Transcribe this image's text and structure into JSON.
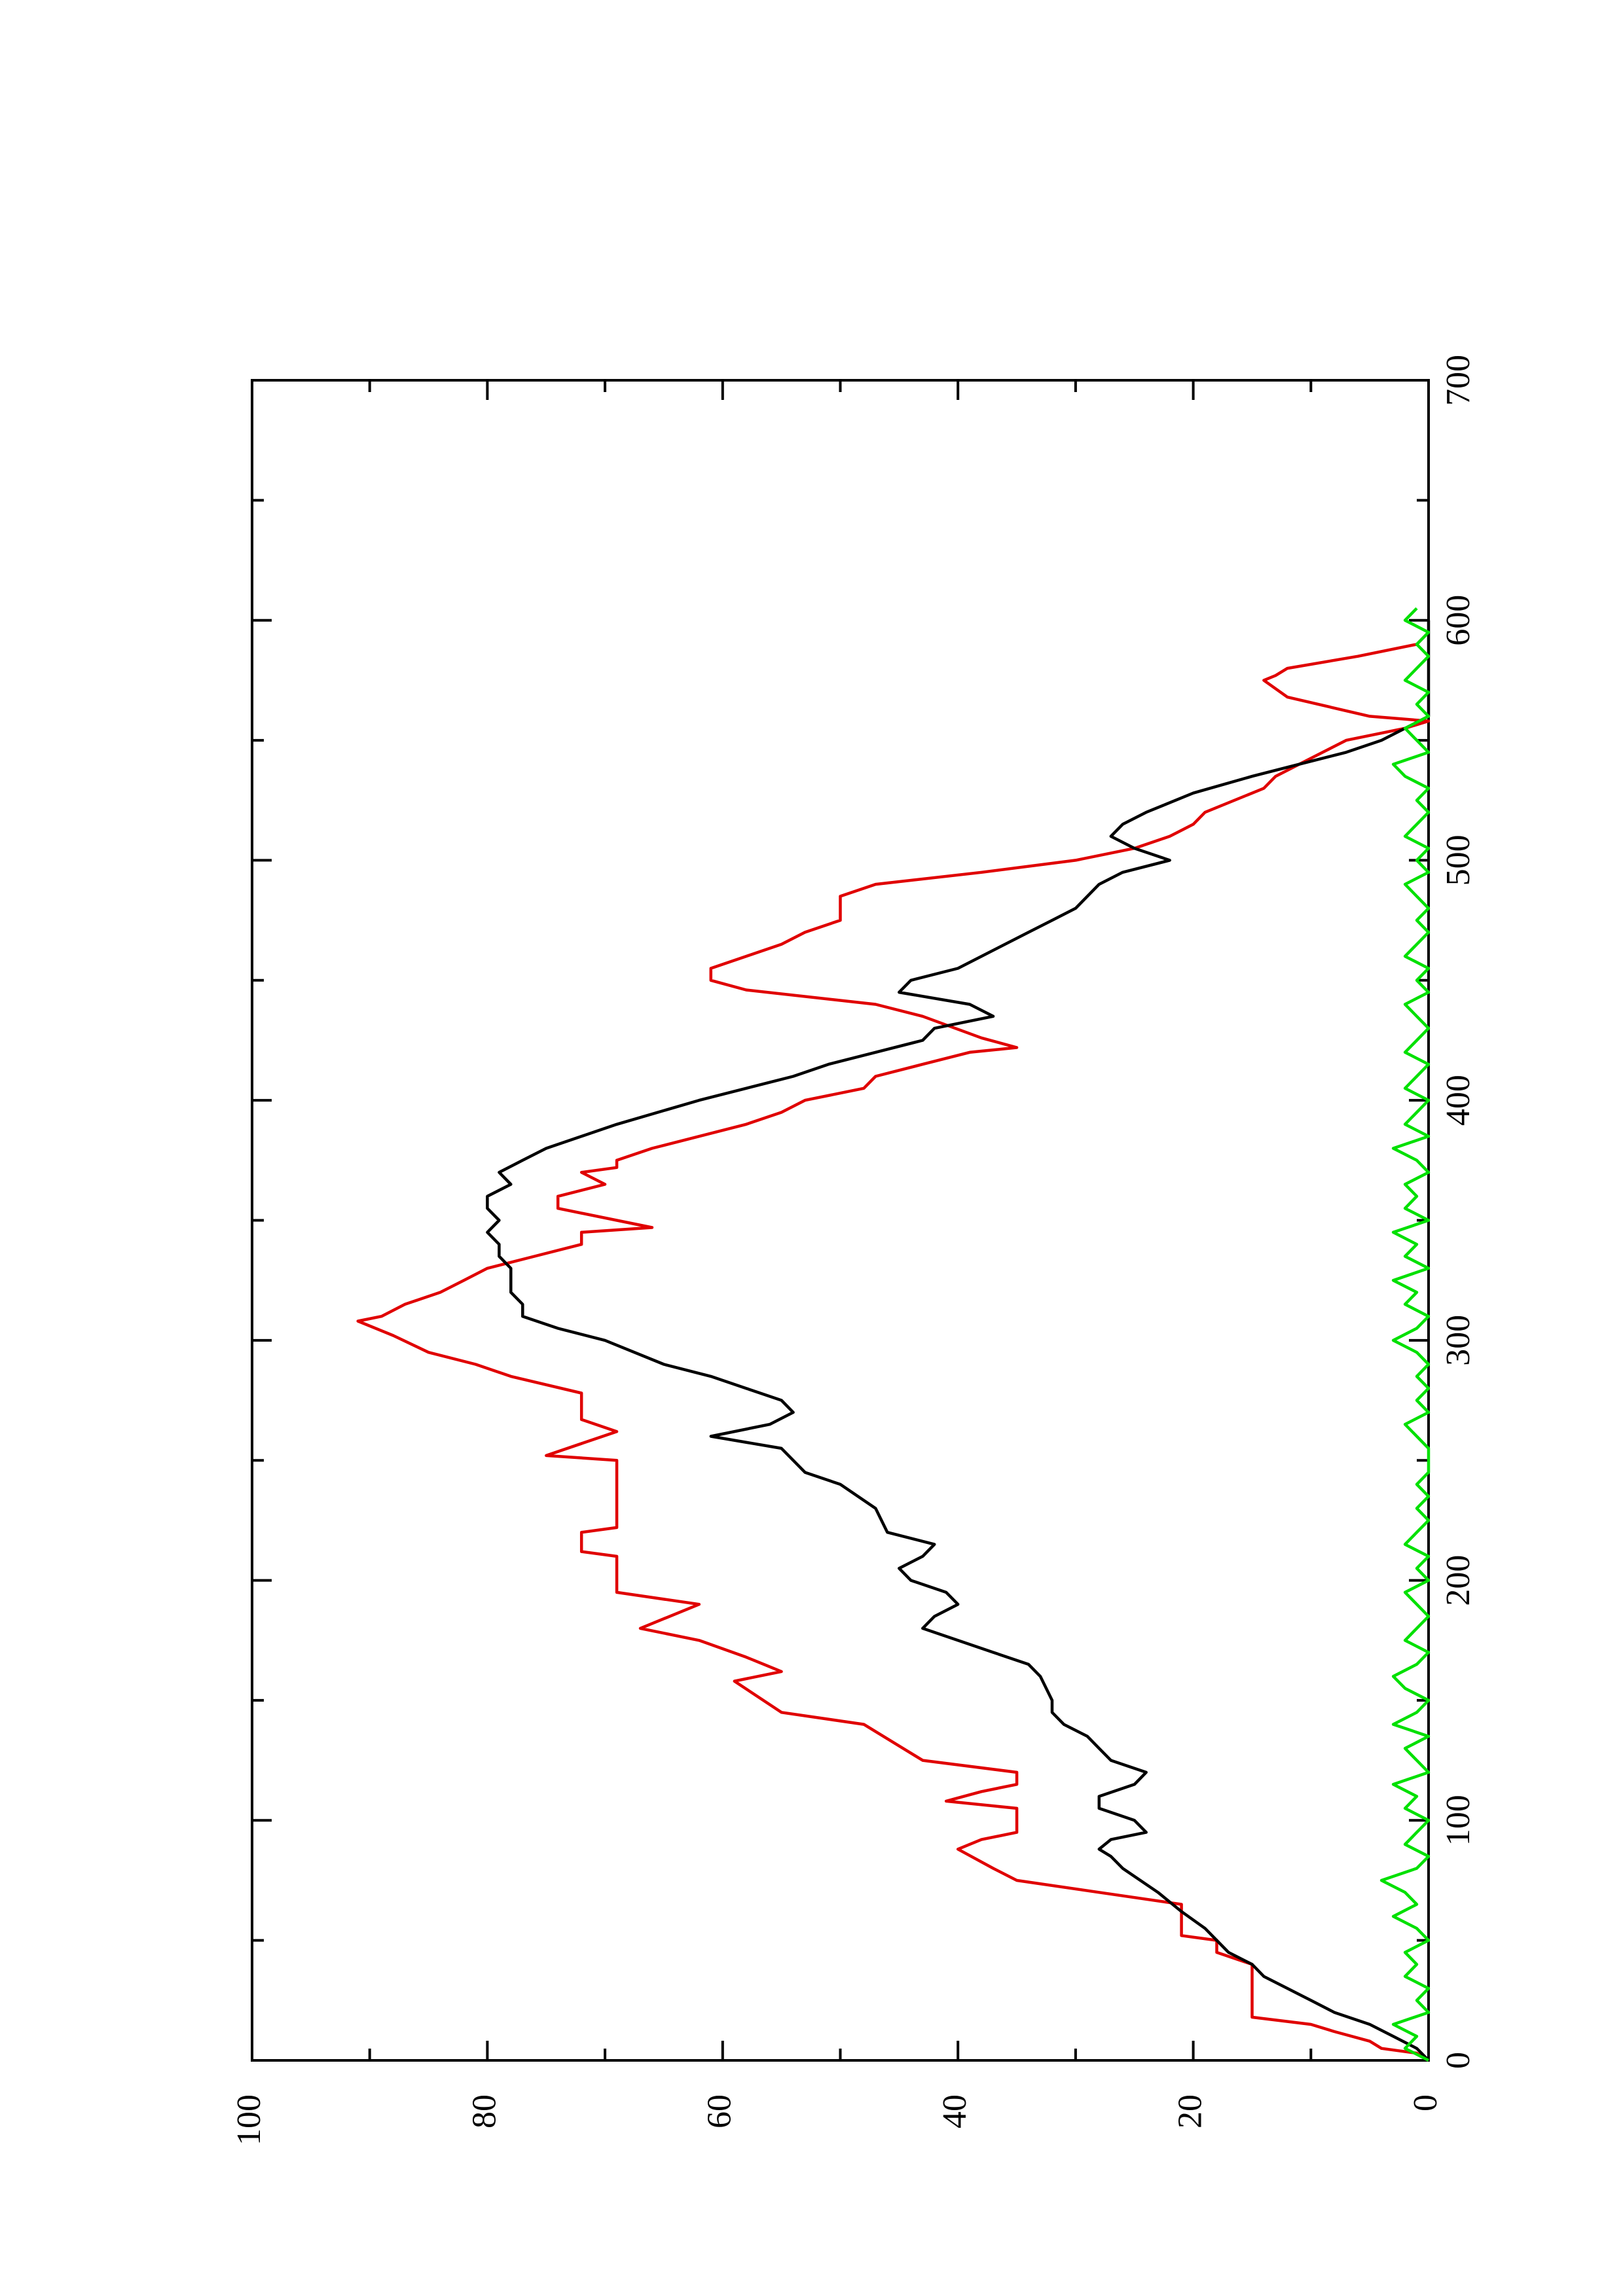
{
  "chart_data": {
    "type": "line",
    "rotated": true,
    "xlim": [
      0,
      700
    ],
    "xticks": [
      0,
      100,
      200,
      300,
      400,
      500,
      600,
      700
    ],
    "x_minor_ticks": [
      50,
      150,
      250,
      350,
      450,
      550,
      650
    ],
    "ylim": [
      0,
      100
    ],
    "yticks": [
      0,
      20,
      40,
      60,
      80,
      100
    ],
    "y_minor_ticks": [
      10,
      30,
      50,
      70,
      90
    ],
    "series": [
      {
        "color": "#e00000",
        "x": [
          0,
          3,
          5,
          8,
          12,
          15,
          18,
          40,
          45,
          50,
          52,
          65,
          70,
          75,
          80,
          88,
          92,
          95,
          105,
          108,
          112,
          115,
          120,
          125,
          140,
          145,
          158,
          162,
          168,
          175,
          180,
          190,
          195,
          210,
          212,
          220,
          222,
          250,
          252,
          262,
          267,
          278,
          285,
          290,
          295,
          302,
          308,
          310,
          315,
          320,
          325,
          330,
          335,
          340,
          345,
          347,
          355,
          360,
          365,
          370,
          372,
          375,
          380,
          390,
          395,
          400,
          405,
          410,
          415,
          420,
          422,
          426,
          435,
          440,
          446,
          450,
          455,
          460,
          465,
          470,
          475,
          485,
          490,
          495,
          500,
          505,
          510,
          515,
          520,
          530,
          535,
          540,
          545,
          550,
          553,
          555,
          558,
          560,
          568,
          575,
          577,
          580,
          585,
          590,
          595
        ],
        "values": [
          0,
          1,
          4,
          5,
          8,
          10,
          15,
          15,
          18,
          18,
          21,
          21,
          28,
          35,
          37,
          40,
          38,
          35,
          35,
          41,
          38,
          35,
          35,
          43,
          48,
          55,
          59,
          55,
          58,
          62,
          67,
          62,
          69,
          69,
          72,
          72,
          69,
          69,
          75,
          69,
          72,
          72,
          78,
          81,
          85,
          88,
          91,
          89,
          87,
          84,
          82,
          80,
          76,
          72,
          72,
          66,
          74,
          74,
          70,
          72,
          69,
          69,
          66,
          58,
          55,
          53,
          48,
          47,
          43,
          39,
          35,
          38,
          43,
          47,
          58,
          61,
          61,
          58,
          55,
          53,
          50,
          50,
          47,
          38,
          30,
          25,
          22,
          20,
          19,
          14,
          13,
          11,
          9,
          7,
          4,
          2,
          0,
          5,
          12,
          14,
          13,
          12,
          6,
          1,
          0
        ]
      },
      {
        "color": "#000000",
        "x": [
          0,
          5,
          10,
          15,
          20,
          25,
          30,
          35,
          40,
          45,
          55,
          62,
          70,
          80,
          85,
          88,
          92,
          95,
          100,
          105,
          110,
          115,
          120,
          125,
          130,
          135,
          140,
          145,
          150,
          160,
          165,
          170,
          175,
          180,
          185,
          190,
          195,
          200,
          205,
          210,
          215,
          220,
          230,
          240,
          245,
          255,
          260,
          265,
          270,
          275,
          280,
          285,
          290,
          300,
          305,
          310,
          315,
          320,
          330,
          335,
          340,
          345,
          350,
          355,
          360,
          365,
          370,
          375,
          380,
          390,
          400,
          405,
          410,
          415,
          420,
          425,
          430,
          435,
          440,
          445,
          450,
          455,
          460,
          470,
          475,
          480,
          490,
          495,
          500,
          505,
          510,
          515,
          520,
          528,
          535,
          540,
          545,
          550,
          555,
          560,
          600
        ],
        "values": [
          0,
          1,
          3,
          5,
          8,
          10,
          12,
          14,
          15,
          17,
          19,
          21,
          23,
          26,
          27,
          28,
          27,
          24,
          25,
          28,
          28,
          25,
          24,
          27,
          28,
          29,
          31,
          32,
          32,
          33,
          34,
          37,
          40,
          43,
          42,
          40,
          41,
          44,
          45,
          43,
          42,
          46,
          47,
          50,
          53,
          55,
          61,
          56,
          54,
          55,
          58,
          61,
          65,
          70,
          74,
          77,
          77,
          78,
          78,
          79,
          79,
          80,
          79,
          80,
          80,
          78,
          79,
          77,
          75,
          69,
          62,
          58,
          54,
          51,
          47,
          43,
          42,
          37,
          39,
          45,
          44,
          40,
          38,
          34,
          32,
          30,
          28,
          26,
          22,
          25,
          27,
          26,
          24,
          20,
          15,
          11,
          7,
          4,
          2,
          0,
          0
        ]
      },
      {
        "color": "#00e000",
        "x": [
          0,
          5,
          10,
          15,
          20,
          25,
          30,
          35,
          40,
          45,
          50,
          55,
          60,
          65,
          70,
          75,
          80,
          85,
          90,
          95,
          100,
          105,
          110,
          115,
          120,
          125,
          130,
          135,
          140,
          145,
          150,
          155,
          160,
          165,
          170,
          175,
          180,
          185,
          190,
          195,
          200,
          205,
          210,
          215,
          220,
          225,
          230,
          235,
          240,
          245,
          250,
          255,
          260,
          265,
          270,
          275,
          280,
          285,
          290,
          295,
          300,
          305,
          310,
          315,
          320,
          325,
          330,
          335,
          340,
          345,
          350,
          355,
          360,
          365,
          370,
          375,
          380,
          385,
          390,
          395,
          400,
          405,
          410,
          415,
          420,
          425,
          430,
          435,
          440,
          445,
          450,
          455,
          460,
          465,
          470,
          475,
          480,
          485,
          490,
          495,
          500,
          505,
          510,
          515,
          520,
          525,
          530,
          535,
          540,
          545,
          550,
          555,
          560,
          565,
          570,
          575,
          580,
          585,
          590,
          595,
          600,
          605
        ],
        "values": [
          0,
          2,
          1,
          3,
          0,
          1,
          0,
          2,
          1,
          2,
          0,
          1,
          3,
          1,
          2,
          4,
          1,
          0,
          2,
          1,
          0,
          2,
          1,
          3,
          0,
          1,
          2,
          0,
          3,
          1,
          0,
          2,
          3,
          1,
          0,
          2,
          1,
          0,
          1,
          2,
          0,
          1,
          0,
          2,
          1,
          0,
          1,
          0,
          1,
          0,
          0,
          0,
          1,
          2,
          0,
          1,
          0,
          1,
          0,
          1,
          3,
          1,
          0,
          2,
          1,
          3,
          0,
          2,
          1,
          3,
          0,
          2,
          1,
          2,
          0,
          1,
          3,
          0,
          2,
          1,
          0,
          2,
          1,
          0,
          2,
          1,
          0,
          1,
          2,
          0,
          1,
          0,
          2,
          1,
          0,
          1,
          0,
          1,
          2,
          0,
          1,
          0,
          2,
          1,
          0,
          1,
          0,
          2,
          3,
          0,
          1,
          2,
          0,
          1,
          0,
          2,
          1,
          0,
          1,
          0,
          2,
          1
        ]
      }
    ]
  }
}
